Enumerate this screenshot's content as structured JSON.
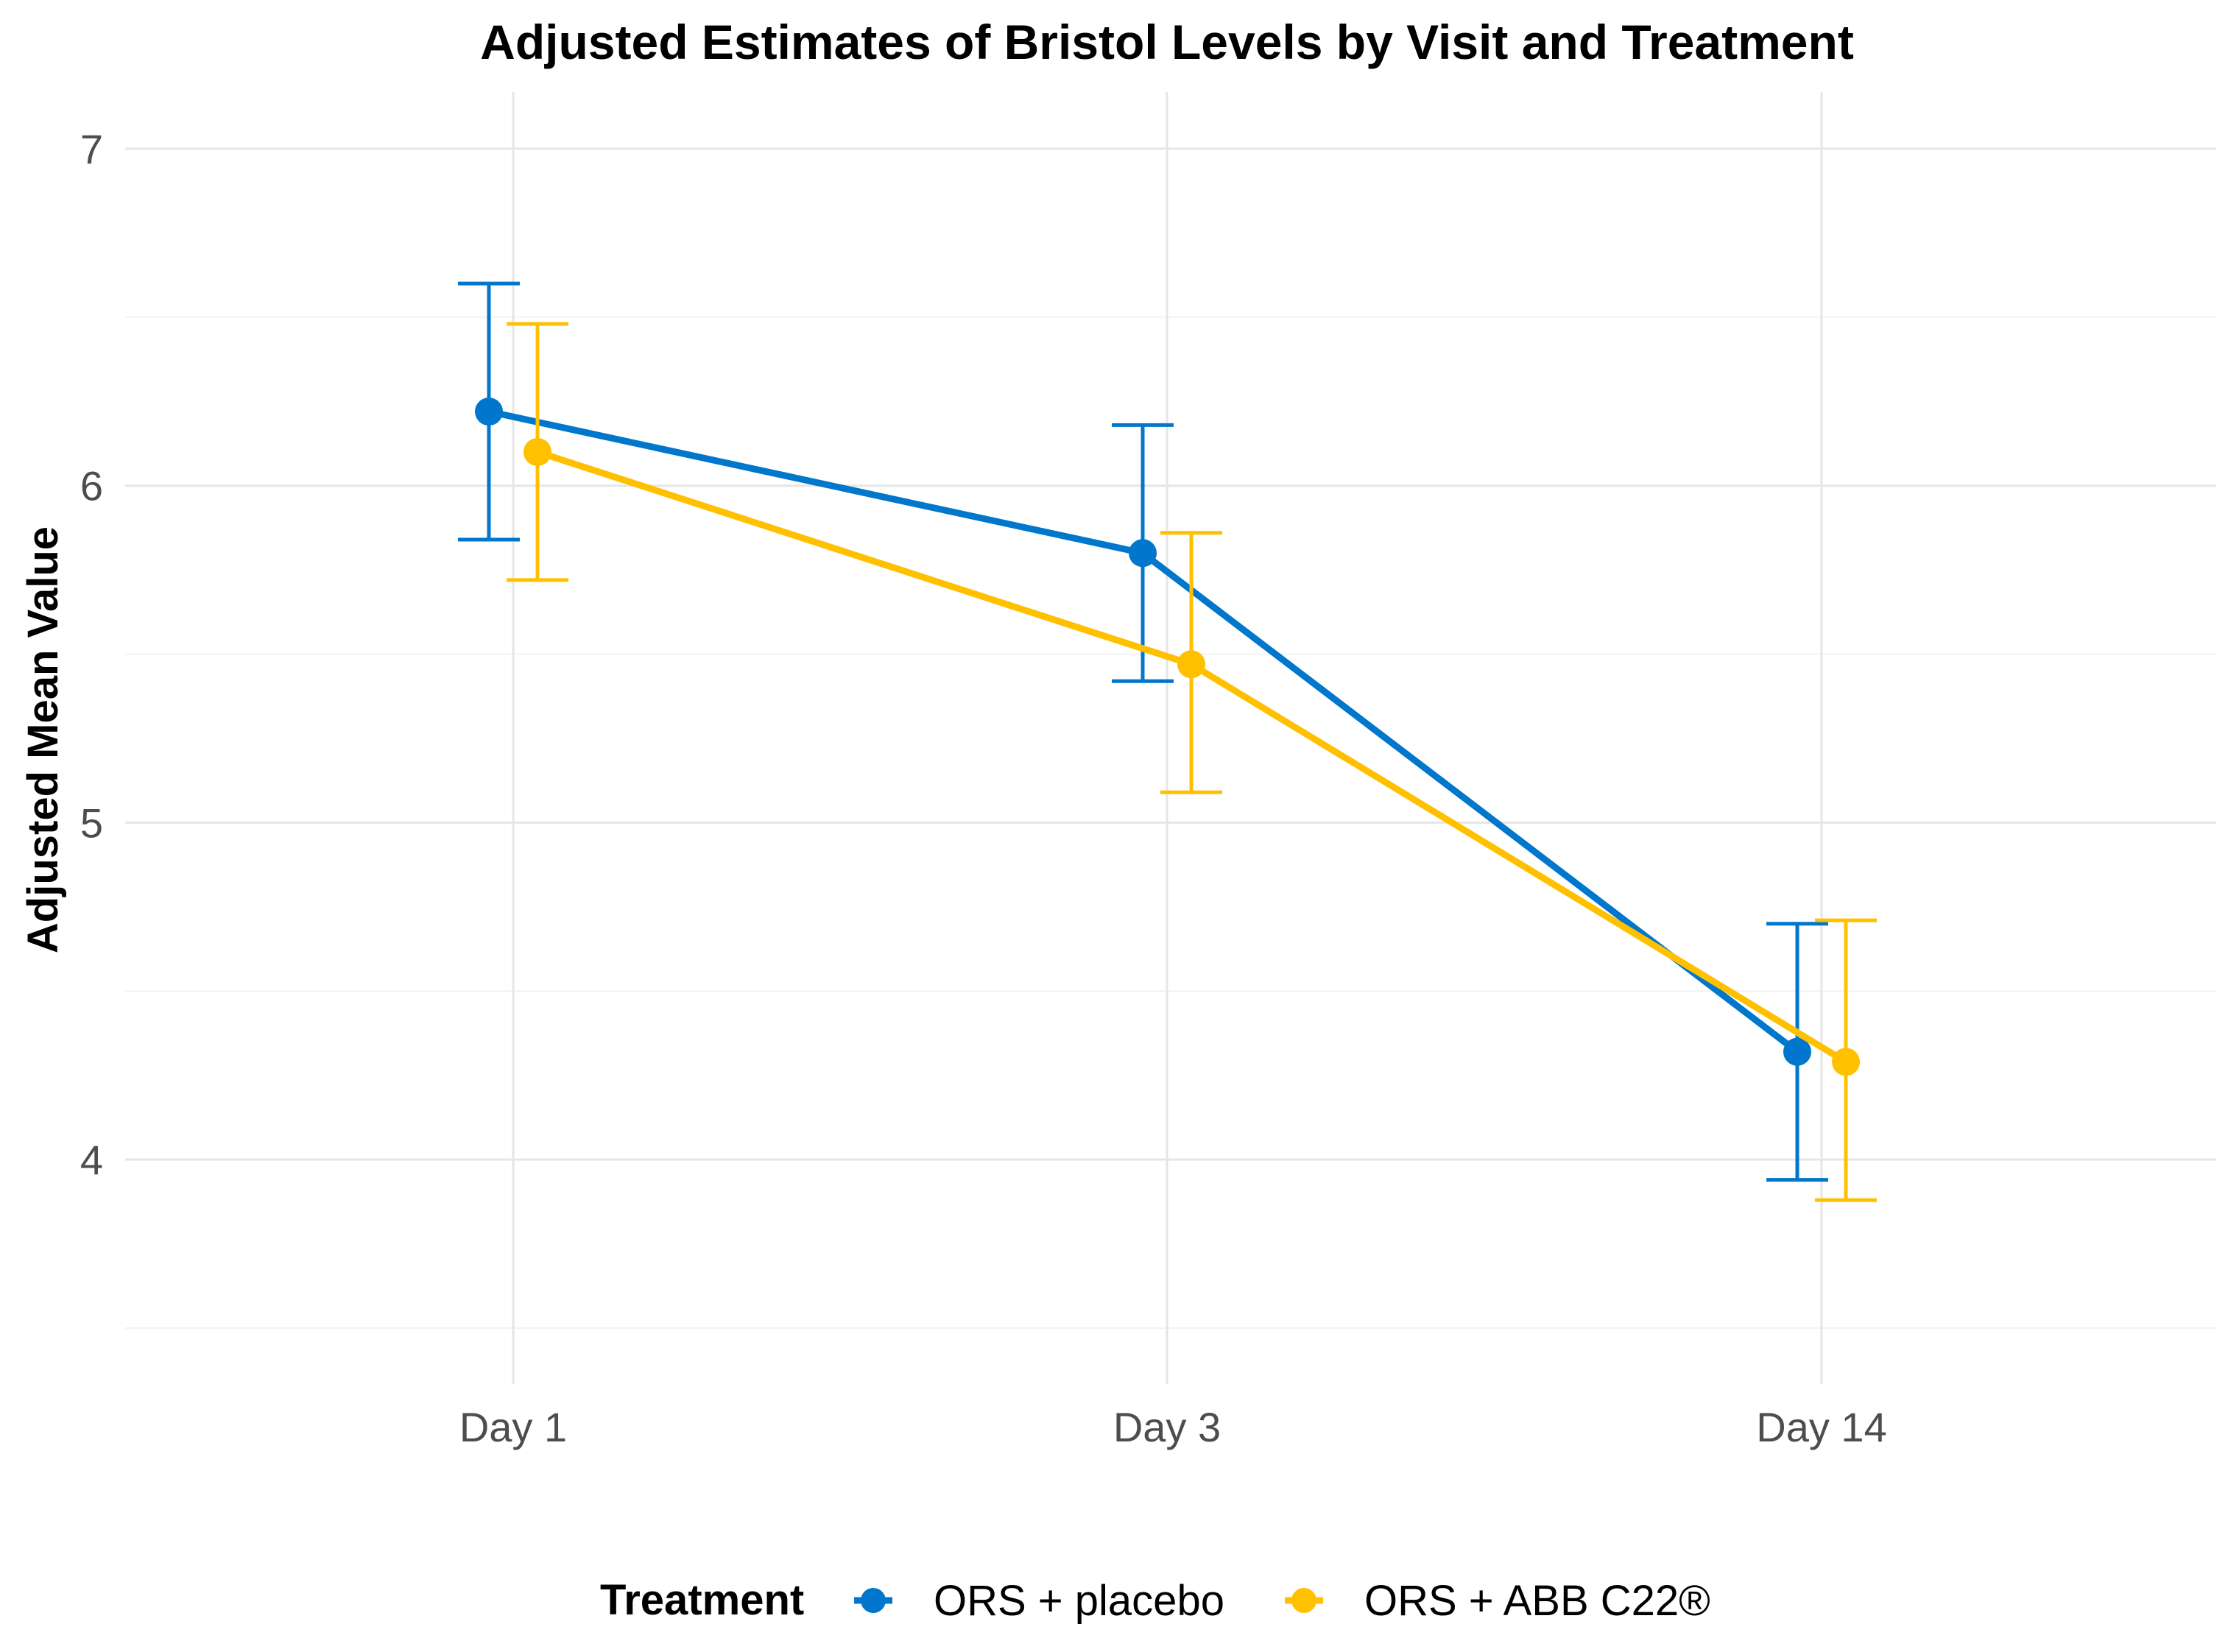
{
  "chart_data": {
    "type": "line",
    "title": "Adjusted Estimates of Bristol Levels by Visit and Treatment",
    "xlabel": "",
    "ylabel": "Adjusted Mean Value",
    "categories": [
      "Day 1",
      "Day 3",
      "Day 14"
    ],
    "ylim": [
      3.5,
      7.0
    ],
    "yticks": [
      4,
      5,
      6,
      7
    ],
    "yticks_minor": [
      3.5,
      4.5,
      5.5,
      6.5
    ],
    "grid": true,
    "error_bars": true,
    "legend": {
      "title": "Treatment",
      "position": "bottom"
    },
    "series": [
      {
        "name": "ORS + placebo",
        "color": "#0077CC",
        "values": [
          6.22,
          5.8,
          4.32
        ],
        "lower": [
          5.84,
          5.42,
          3.94
        ],
        "upper": [
          6.6,
          6.18,
          4.7
        ]
      },
      {
        "name": "ORS + ABB C22®",
        "color": "#FFC000",
        "values": [
          6.1,
          5.47,
          4.29
        ],
        "lower": [
          5.72,
          5.09,
          3.88
        ],
        "upper": [
          6.48,
          5.86,
          4.71
        ]
      }
    ]
  }
}
